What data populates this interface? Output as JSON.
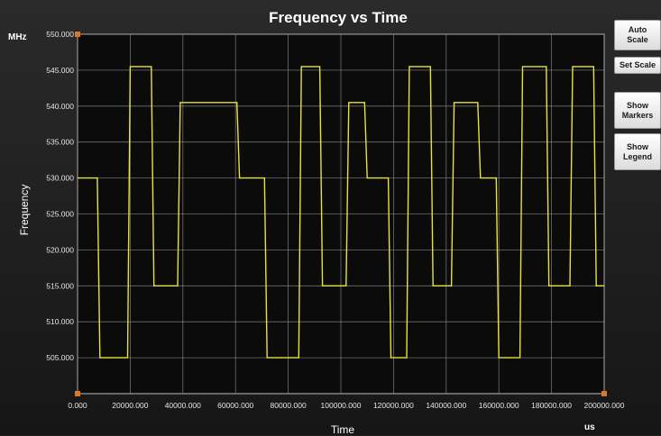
{
  "window": {
    "title": "Frequency vs Time"
  },
  "buttons": {
    "auto_scale": "Auto\nScale",
    "set_scale": "Set Scale",
    "show_markers": "Show\nMarkers",
    "show_legend": "Show\nLegend"
  },
  "colors": {
    "background": "#1f1f1f",
    "plot_background": "#0b0b0b",
    "grid": "#9a9a9a",
    "trace": "#e8e23a",
    "corner_marker": "#d9772b"
  },
  "chart_data": {
    "type": "line",
    "title": "Frequency vs Time",
    "xlabel": "Time",
    "ylabel": "Frequency",
    "x_unit": "us",
    "y_unit": "MHz",
    "xlim": [
      0,
      200000
    ],
    "ylim": [
      500,
      550
    ],
    "x_ticks": [
      "0.000",
      "20000.000",
      "40000.000",
      "60000.000",
      "80000.000",
      "100000.000",
      "120000.000",
      "140000.000",
      "160000.000",
      "180000.000",
      "200000.000"
    ],
    "y_ticks": [
      "550.000",
      "545.000",
      "540.000",
      "535.000",
      "530.000",
      "525.000",
      "520.000",
      "515.000",
      "510.000",
      "505.000"
    ],
    "grid": true,
    "series": [
      {
        "x": [
          0,
          7500,
          8500,
          19000,
          20000,
          28000,
          29000,
          38000,
          39000,
          60500,
          61500,
          71000,
          72000,
          84000,
          85000,
          92000,
          93000,
          102000,
          103000,
          109000,
          110000,
          118000,
          119000,
          125000,
          126000,
          134000,
          135000,
          142000,
          143000,
          152000,
          153000,
          159000,
          160000,
          168000,
          169000,
          178000,
          179000,
          187000,
          188000,
          196000,
          197000,
          200000
        ],
        "y": [
          530,
          530,
          505,
          505,
          545.5,
          545.5,
          515,
          515,
          540.5,
          540.5,
          530,
          530,
          505,
          505,
          545.5,
          545.5,
          515,
          515,
          540.5,
          540.5,
          530,
          530,
          505,
          505,
          545.5,
          545.5,
          515,
          515,
          540.5,
          540.5,
          530,
          530,
          505,
          505,
          545.5,
          545.5,
          515,
          515,
          545.5,
          545.5,
          515,
          515
        ]
      }
    ]
  }
}
